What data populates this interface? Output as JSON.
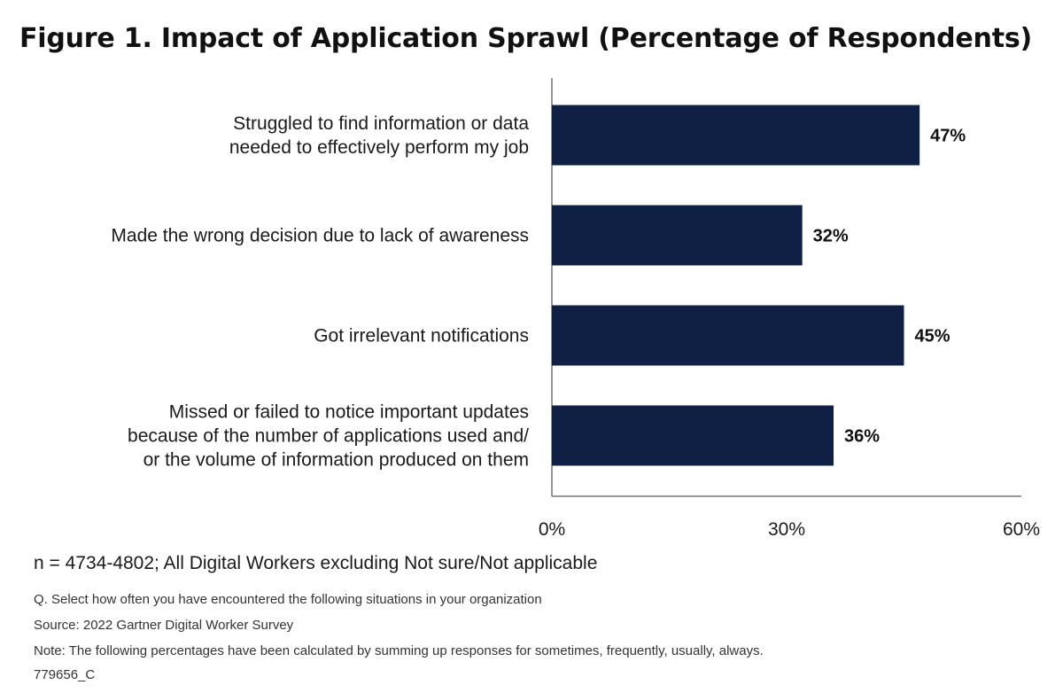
{
  "title": "Figure 1. Impact of Application Sprawl (Percentage of Respondents)",
  "chart_data": {
    "type": "bar",
    "orientation": "horizontal",
    "title": "Figure 1. Impact of Application Sprawl (Percentage of Respondents)",
    "categories": [
      [
        "Struggled to find information or data",
        "needed to effectively perform my job"
      ],
      [
        "Made the wrong decision due to lack of awareness"
      ],
      [
        "Got irrelevant notifications"
      ],
      [
        "Missed or failed to notice important updates",
        "because of the number of applications used and/",
        "or the volume of information produced on them"
      ]
    ],
    "values": [
      47,
      32,
      45,
      36
    ],
    "value_labels": [
      "47%",
      "32%",
      "45%",
      "36%"
    ],
    "xlim": [
      0,
      60
    ],
    "xticks": [
      0,
      30,
      60
    ],
    "xtick_labels": [
      "0%",
      "30%",
      "60%"
    ],
    "xlabel": "",
    "ylabel": "",
    "grid": false,
    "bar_color": "#0f2044"
  },
  "notes": {
    "sample": "n = 4734-4802; All Digital Workers excluding Not sure/Not applicable",
    "question": "Q. Select how often you have encountered the following situations in your organization",
    "source": "Source: 2022 Gartner Digital Worker Survey",
    "note": "Note: The following percentages have been calculated by summing up responses for sometimes, frequently, usually, always.",
    "id": "779656_C"
  }
}
